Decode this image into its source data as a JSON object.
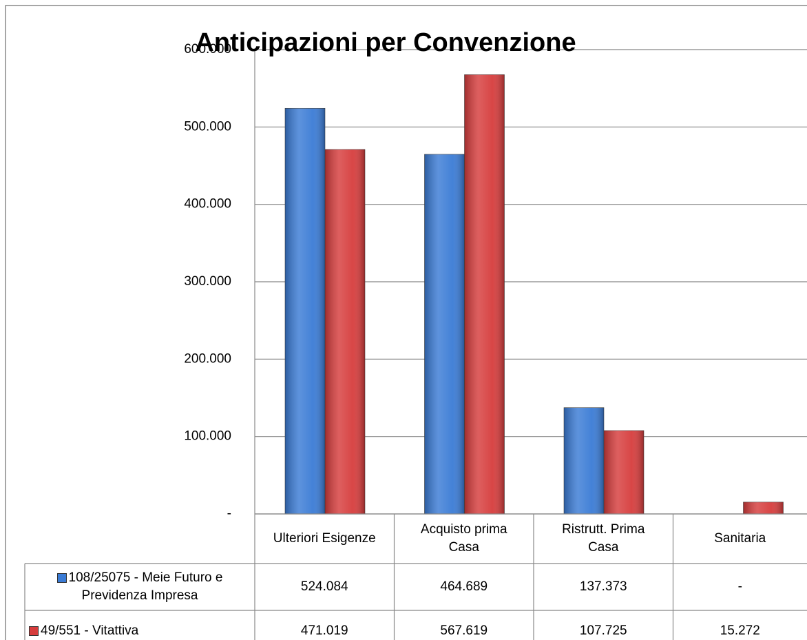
{
  "chart_data": {
    "type": "bar",
    "title": "Anticipazioni  per Convenzione",
    "categories": [
      "Ulteriori Esigenze",
      "Acquisto prima Casa",
      "Ristrutt. Prima Casa",
      "Sanitaria"
    ],
    "series": [
      {
        "name": "108/25075 - Meie Futuro e Previdenza Impresa",
        "color": "#3a7bd5",
        "values": [
          524084,
          464689,
          137373,
          0
        ],
        "value_labels": [
          "524.084",
          "464.689",
          "137.373",
          "-"
        ]
      },
      {
        "name": "49/551 - Vitattiva",
        "color": "#d63c3c",
        "values": [
          471019,
          567619,
          107725,
          15272
        ],
        "value_labels": [
          "471.019",
          "567.619",
          "107.725",
          "15.272"
        ]
      }
    ],
    "ylim": [
      0,
      600000
    ],
    "yticks": [
      {
        "value": 0,
        "label": "-"
      },
      {
        "value": 100000,
        "label": "100.000"
      },
      {
        "value": 200000,
        "label": "200.000"
      },
      {
        "value": 300000,
        "label": "300.000"
      },
      {
        "value": 400000,
        "label": "400.000"
      },
      {
        "value": 500000,
        "label": "500.000"
      },
      {
        "value": 600000,
        "label": "600.000"
      }
    ],
    "grid": true,
    "data_table": true
  }
}
